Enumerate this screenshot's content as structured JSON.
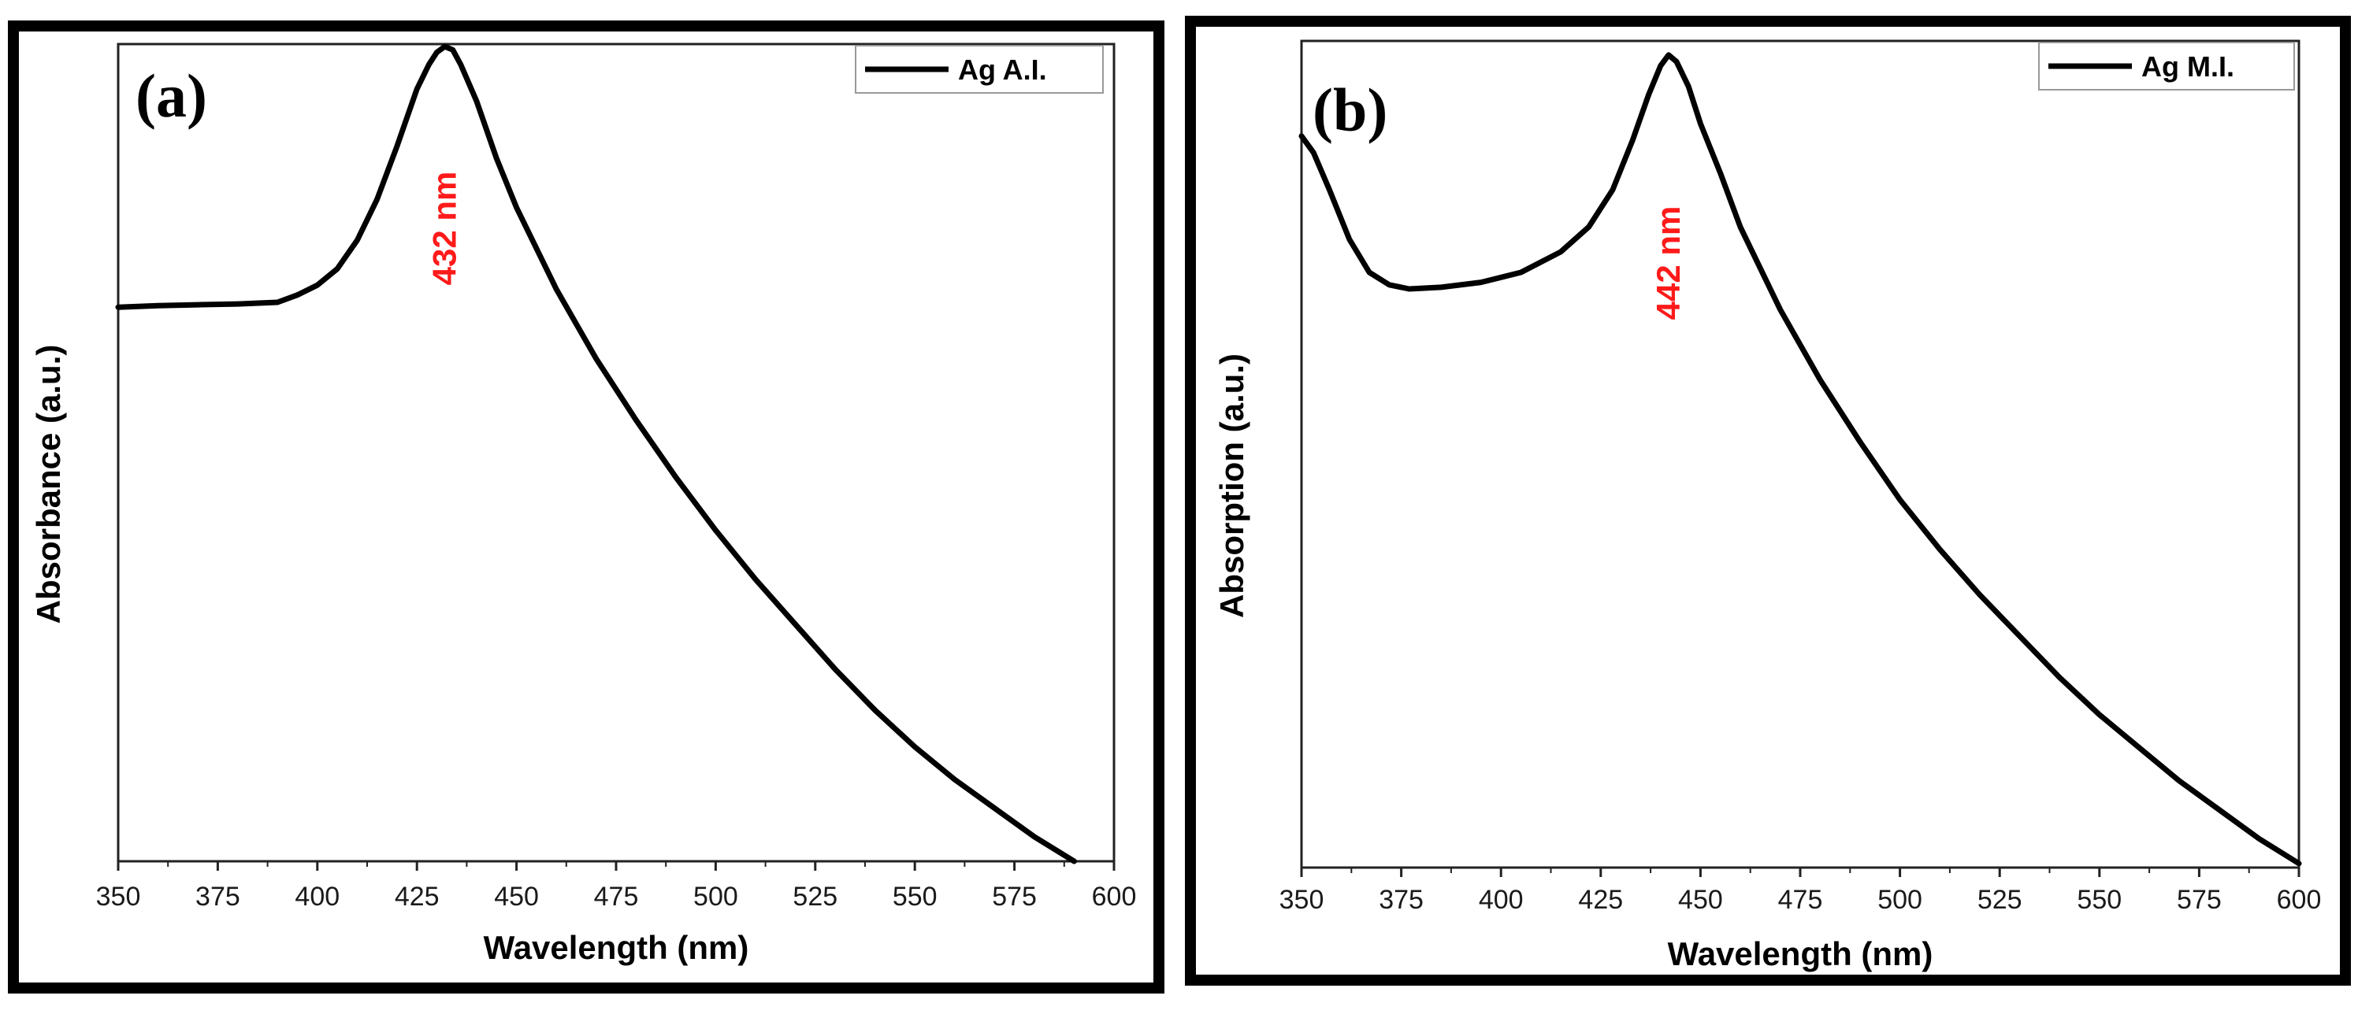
{
  "chart_data": [
    {
      "type": "line",
      "panel_label": "(a)",
      "xlabel": "Wavelength (nm)",
      "ylabel": "Absorbance (a.u.)",
      "xlim": [
        350,
        600
      ],
      "ylim": [
        0,
        1
      ],
      "x_ticks": [
        "350",
        "375",
        "400",
        "425",
        "450",
        "475",
        "500",
        "525",
        "550",
        "575",
        "600"
      ],
      "legend": {
        "label": "Ag A.I.",
        "position": "top-right"
      },
      "peak_annotation": {
        "text": "432 nm",
        "x": 432
      },
      "series": [
        {
          "name": "Ag A.I.",
          "color": "#000000",
          "x": [
            350,
            360,
            370,
            380,
            390,
            395,
            400,
            405,
            410,
            415,
            420,
            425,
            428,
            430,
            432,
            434,
            436,
            440,
            445,
            450,
            460,
            470,
            480,
            490,
            500,
            510,
            520,
            530,
            540,
            550,
            560,
            570,
            580,
            590
          ],
          "y": [
            0.678,
            0.68,
            0.681,
            0.682,
            0.684,
            0.693,
            0.705,
            0.725,
            0.76,
            0.81,
            0.875,
            0.945,
            0.975,
            0.99,
            0.997,
            0.993,
            0.975,
            0.93,
            0.86,
            0.8,
            0.7,
            0.615,
            0.54,
            0.47,
            0.405,
            0.345,
            0.29,
            0.235,
            0.185,
            0.14,
            0.1,
            0.065,
            0.03,
            0.0
          ]
        }
      ]
    },
    {
      "type": "line",
      "panel_label": "(b)",
      "xlabel": "Wavelength (nm)",
      "ylabel": "Absorption (a.u.)",
      "xlim": [
        350,
        600
      ],
      "ylim": [
        0,
        1
      ],
      "x_ticks": [
        "350",
        "375",
        "400",
        "425",
        "450",
        "475",
        "500",
        "525",
        "550",
        "575",
        "600"
      ],
      "legend": {
        "label": "Ag M.I.",
        "position": "top-right"
      },
      "peak_annotation": {
        "text": "442 nm",
        "x": 442
      },
      "series": [
        {
          "name": "Ag M.I.",
          "color": "#000000",
          "x": [
            350,
            353,
            357,
            362,
            367,
            372,
            377,
            385,
            395,
            405,
            415,
            422,
            428,
            433,
            437,
            440,
            442,
            444,
            447,
            450,
            455,
            460,
            470,
            480,
            490,
            500,
            510,
            520,
            530,
            540,
            550,
            560,
            570,
            580,
            590,
            600
          ],
          "y": [
            0.885,
            0.865,
            0.82,
            0.76,
            0.72,
            0.705,
            0.7,
            0.702,
            0.708,
            0.72,
            0.745,
            0.775,
            0.82,
            0.88,
            0.935,
            0.97,
            0.983,
            0.975,
            0.945,
            0.9,
            0.84,
            0.775,
            0.675,
            0.59,
            0.515,
            0.445,
            0.385,
            0.33,
            0.28,
            0.23,
            0.185,
            0.145,
            0.105,
            0.07,
            0.035,
            0.005
          ]
        }
      ]
    }
  ]
}
